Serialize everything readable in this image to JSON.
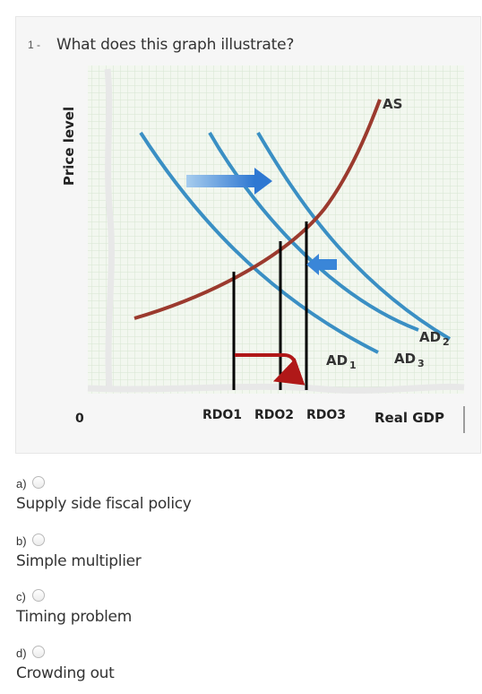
{
  "question": {
    "number": "1 -",
    "text": "What does this graph illustrate?"
  },
  "graph": {
    "y_axis_label": "Price level",
    "x_axis_label": "Real GDP",
    "origin_label": "0",
    "x_ticks": [
      "RDO1",
      "RDO2",
      "RDO3"
    ],
    "curves": {
      "as_label": "AS",
      "ad1_label": "AD",
      "ad1_sub": "1",
      "ad2_label": "AD",
      "ad2_sub": "2",
      "ad3_label": "AD",
      "ad3_sub": "3"
    },
    "colors": {
      "ad_curves": "#3a8fc4",
      "as_curve": "#9b3a2e",
      "arrow_right": "#3a86d8",
      "arrow_left": "#3a86d8",
      "return_arrow": "#b01818",
      "grid": "#d7e6d2"
    }
  },
  "options": [
    {
      "letter": "a)",
      "text": "Supply side fiscal policy"
    },
    {
      "letter": "b)",
      "text": "Simple multiplier"
    },
    {
      "letter": "c)",
      "text": "Timing problem"
    },
    {
      "letter": "d)",
      "text": "Crowding out"
    }
  ]
}
